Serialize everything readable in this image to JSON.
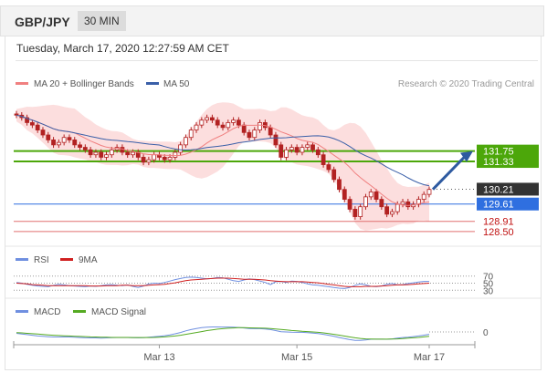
{
  "header": {
    "pair": "GBP/JPY",
    "timeframe": "30 MIN"
  },
  "datetime": "Tuesday, March 17, 2020 12:27:59 AM CET",
  "credit": "Research © 2020 Trading Central",
  "colors": {
    "candle": "#b22222",
    "ma20": "#f08080",
    "band": "#fbd3d3",
    "ma50": "#3a5fa8",
    "resistance": "#4ca70a",
    "support": "#2f6fe0",
    "weak_support": "#e07070",
    "arrow": "#2e5aa0",
    "rsi": "#6f8fe0",
    "rsi_ma": "#d02020",
    "macd": "#6f8fe0",
    "macd_signal": "#55aa22"
  },
  "chart_data": [
    {
      "type": "candlestick",
      "legend": [
        "MA 20 + Bollinger Bands",
        "MA 50"
      ],
      "x_ticks": [
        "Mar 13",
        "Mar 15",
        "Mar 17"
      ],
      "y_range": [
        128.2,
        133.8
      ],
      "levels": [
        {
          "label": "131.75",
          "value": 131.75,
          "kind": "resistance"
        },
        {
          "label": "131.33",
          "value": 131.33,
          "kind": "resistance"
        },
        {
          "label": "130.21",
          "value": 130.21,
          "kind": "last"
        },
        {
          "label": "129.61",
          "value": 129.61,
          "kind": "support"
        },
        {
          "label": "128.91",
          "value": 128.91,
          "kind": "weak_support"
        },
        {
          "label": "128.50",
          "value": 128.5,
          "kind": "weak_support"
        }
      ],
      "close": [
        133.2,
        133.1,
        132.9,
        132.8,
        132.6,
        132.4,
        132.2,
        132.0,
        132.1,
        132.3,
        132.2,
        132.0,
        131.9,
        131.8,
        131.6,
        131.7,
        131.5,
        131.6,
        131.8,
        131.9,
        131.7,
        131.6,
        131.7,
        131.5,
        131.3,
        131.4,
        131.6,
        131.5,
        131.4,
        131.5,
        131.7,
        132.0,
        132.3,
        132.6,
        132.8,
        133.0,
        133.1,
        133.0,
        132.8,
        132.7,
        132.9,
        133.0,
        132.8,
        132.5,
        132.3,
        132.6,
        132.9,
        132.7,
        132.4,
        132.0,
        131.5,
        131.8,
        131.9,
        131.7,
        131.9,
        132.0,
        131.8,
        131.6,
        131.2,
        131.0,
        130.6,
        130.2,
        129.8,
        129.4,
        129.1,
        129.5,
        129.9,
        130.1,
        129.8,
        129.5,
        129.2,
        129.3,
        129.6,
        129.7,
        129.5,
        129.6,
        129.8,
        130.0,
        130.2
      ]
    },
    {
      "type": "line",
      "legend": [
        "RSI",
        "9MA"
      ],
      "levels": [
        {
          "label": "70",
          "value": 70
        },
        {
          "label": "50",
          "value": 50
        },
        {
          "label": "30",
          "value": 30
        }
      ],
      "y_range": [
        0,
        100
      ],
      "rsi": [
        52,
        50,
        47,
        44,
        42,
        41,
        40,
        44,
        47,
        45,
        43,
        42,
        41,
        40,
        42,
        41,
        43,
        45,
        46,
        44,
        43,
        45,
        41,
        38,
        42,
        48,
        50,
        49,
        52,
        56,
        60,
        63,
        66,
        67,
        66,
        64,
        62,
        63,
        66,
        65,
        61,
        57,
        55,
        59,
        62,
        60,
        56,
        52,
        46,
        54,
        55,
        52,
        56,
        55,
        52,
        48,
        45,
        44,
        42,
        40,
        38,
        36,
        35,
        38,
        44,
        48,
        45,
        41,
        40,
        42,
        47,
        49,
        45,
        46,
        49,
        51,
        53,
        55,
        55
      ],
      "rsi_ma": [
        50,
        49,
        48,
        46,
        45,
        44,
        43,
        43,
        43,
        43,
        43,
        43,
        43,
        43,
        42,
        42,
        42,
        43,
        43,
        43,
        44,
        44,
        43,
        43,
        43,
        44,
        45,
        46,
        47,
        49,
        51,
        54,
        57,
        59,
        60,
        61,
        62,
        63,
        64,
        64,
        64,
        63,
        62,
        61,
        61,
        61,
        60,
        59,
        57,
        56,
        55,
        54,
        54,
        54,
        54,
        53,
        52,
        51,
        49,
        47,
        45,
        43,
        41,
        40,
        40,
        40,
        41,
        41,
        41,
        42,
        43,
        44,
        45,
        45,
        46,
        47,
        48,
        49,
        50
      ]
    },
    {
      "type": "line",
      "legend": [
        "MACD",
        "MACD Signal"
      ],
      "levels": [
        {
          "label": "0",
          "value": 0
        }
      ],
      "y_range": [
        -1.1,
        1.1
      ],
      "macd": [
        -0.1,
        -0.15,
        -0.2,
        -0.25,
        -0.3,
        -0.33,
        -0.36,
        -0.38,
        -0.38,
        -0.37,
        -0.38,
        -0.4,
        -0.42,
        -0.44,
        -0.45,
        -0.45,
        -0.46,
        -0.45,
        -0.43,
        -0.42,
        -0.42,
        -0.42,
        -0.43,
        -0.44,
        -0.43,
        -0.4,
        -0.36,
        -0.32,
        -0.28,
        -0.22,
        -0.14,
        -0.04,
        0.08,
        0.18,
        0.26,
        0.32,
        0.36,
        0.38,
        0.38,
        0.37,
        0.37,
        0.36,
        0.34,
        0.3,
        0.26,
        0.25,
        0.25,
        0.22,
        0.18,
        0.1,
        0.02,
        0.0,
        -0.02,
        -0.03,
        -0.03,
        -0.05,
        -0.08,
        -0.12,
        -0.18,
        -0.25,
        -0.33,
        -0.42,
        -0.5,
        -0.58,
        -0.64,
        -0.64,
        -0.6,
        -0.55,
        -0.54,
        -0.54,
        -0.55,
        -0.52,
        -0.47,
        -0.42,
        -0.39,
        -0.35,
        -0.3,
        -0.24,
        -0.18
      ],
      "signal": [
        -0.05,
        -0.07,
        -0.1,
        -0.13,
        -0.16,
        -0.19,
        -0.22,
        -0.25,
        -0.27,
        -0.29,
        -0.3,
        -0.32,
        -0.34,
        -0.35,
        -0.37,
        -0.38,
        -0.39,
        -0.4,
        -0.41,
        -0.41,
        -0.41,
        -0.41,
        -0.42,
        -0.42,
        -0.42,
        -0.42,
        -0.41,
        -0.39,
        -0.37,
        -0.34,
        -0.3,
        -0.25,
        -0.18,
        -0.11,
        -0.04,
        0.03,
        0.1,
        0.16,
        0.21,
        0.25,
        0.28,
        0.3,
        0.32,
        0.32,
        0.31,
        0.3,
        0.29,
        0.28,
        0.26,
        0.23,
        0.19,
        0.15,
        0.11,
        0.08,
        0.05,
        0.03,
        0.0,
        -0.03,
        -0.07,
        -0.12,
        -0.18,
        -0.24,
        -0.31,
        -0.38,
        -0.44,
        -0.49,
        -0.52,
        -0.53,
        -0.54,
        -0.54,
        -0.54,
        -0.53,
        -0.52,
        -0.5,
        -0.47,
        -0.44,
        -0.41,
        -0.37,
        -0.33
      ]
    }
  ]
}
